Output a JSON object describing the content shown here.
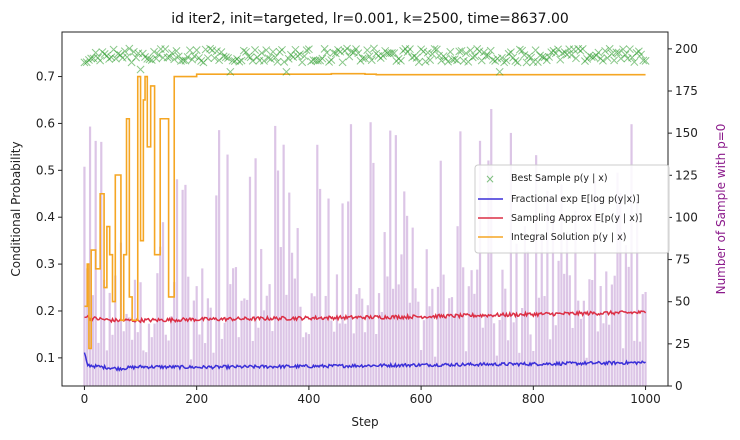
{
  "chart_data": {
    "type": "line",
    "title": "id iter2, init=targeted, lr=0.001, k=2500, time=8637.00",
    "xlabel": "Step",
    "ylabel": "Conditional Probability",
    "y2label": "Number of Sample with p=0",
    "xlim": [
      -40,
      1040
    ],
    "ylim": [
      0.04,
      0.795
    ],
    "y2lim": [
      0,
      210
    ],
    "xticks": [
      "0",
      "200",
      "400",
      "600",
      "800",
      "1000"
    ],
    "yticks": [
      "0.1",
      "0.2",
      "0.3",
      "0.4",
      "0.5",
      "0.6",
      "0.7"
    ],
    "y2ticks": [
      "0",
      "25",
      "50",
      "75",
      "100",
      "125",
      "150",
      "175",
      "200"
    ],
    "grid": false,
    "legend_position": "center-right",
    "colors": {
      "best_sample": "#2a9a2a",
      "fractional": "#3a2fd8",
      "sampling": "#dc2f45",
      "integral": "#f5a623",
      "bars": "#9b59b6"
    },
    "series": [
      {
        "name": "Best Sample p(y | x)",
        "type": "scatter",
        "marker": "x",
        "approx_value": 0.745,
        "range": [
          0.73,
          0.76
        ],
        "outliers": [
          [
            100,
            0.715
          ],
          [
            260,
            0.71
          ],
          [
            360,
            0.71
          ],
          [
            740,
            0.71
          ],
          [
            850,
            0.715
          ]
        ]
      },
      {
        "name": "Fractional exp E[log p(y|x)]",
        "type": "line",
        "x": [
          0,
          5,
          20,
          60,
          100,
          200,
          400,
          600,
          800,
          1000
        ],
        "values": [
          0.11,
          0.085,
          0.082,
          0.077,
          0.081,
          0.08,
          0.082,
          0.085,
          0.087,
          0.09
        ]
      },
      {
        "name": "Sampling Approx E[p(y | x)]",
        "type": "line",
        "x": [
          0,
          10,
          50,
          100,
          200,
          400,
          600,
          800,
          1000
        ],
        "values": [
          0.19,
          0.185,
          0.18,
          0.18,
          0.182,
          0.185,
          0.188,
          0.193,
          0.197
        ]
      },
      {
        "name": "Integral Solution p(y | x)",
        "type": "step",
        "x": [
          0,
          5,
          8,
          12,
          20,
          28,
          35,
          40,
          45,
          50,
          55,
          65,
          70,
          75,
          80,
          85,
          90,
          95,
          100,
          105,
          108,
          112,
          118,
          125,
          135,
          150,
          160,
          200,
          300,
          420,
          440,
          500,
          520,
          700,
          800,
          1000
        ],
        "values": [
          0.21,
          0.3,
          0.12,
          0.33,
          0.29,
          0.45,
          0.25,
          0.38,
          0.32,
          0.22,
          0.49,
          0.18,
          0.32,
          0.61,
          0.23,
          0.18,
          0.18,
          0.7,
          0.35,
          0.65,
          0.7,
          0.55,
          0.68,
          0.32,
          0.61,
          0.23,
          0.7,
          0.705,
          0.705,
          0.705,
          0.706,
          0.705,
          0.704,
          0.704,
          0.704,
          0.704
        ]
      },
      {
        "name": "Number of Sample with p=0",
        "type": "bar",
        "axis": "right",
        "approx_range": [
          0,
          165
        ]
      }
    ]
  }
}
